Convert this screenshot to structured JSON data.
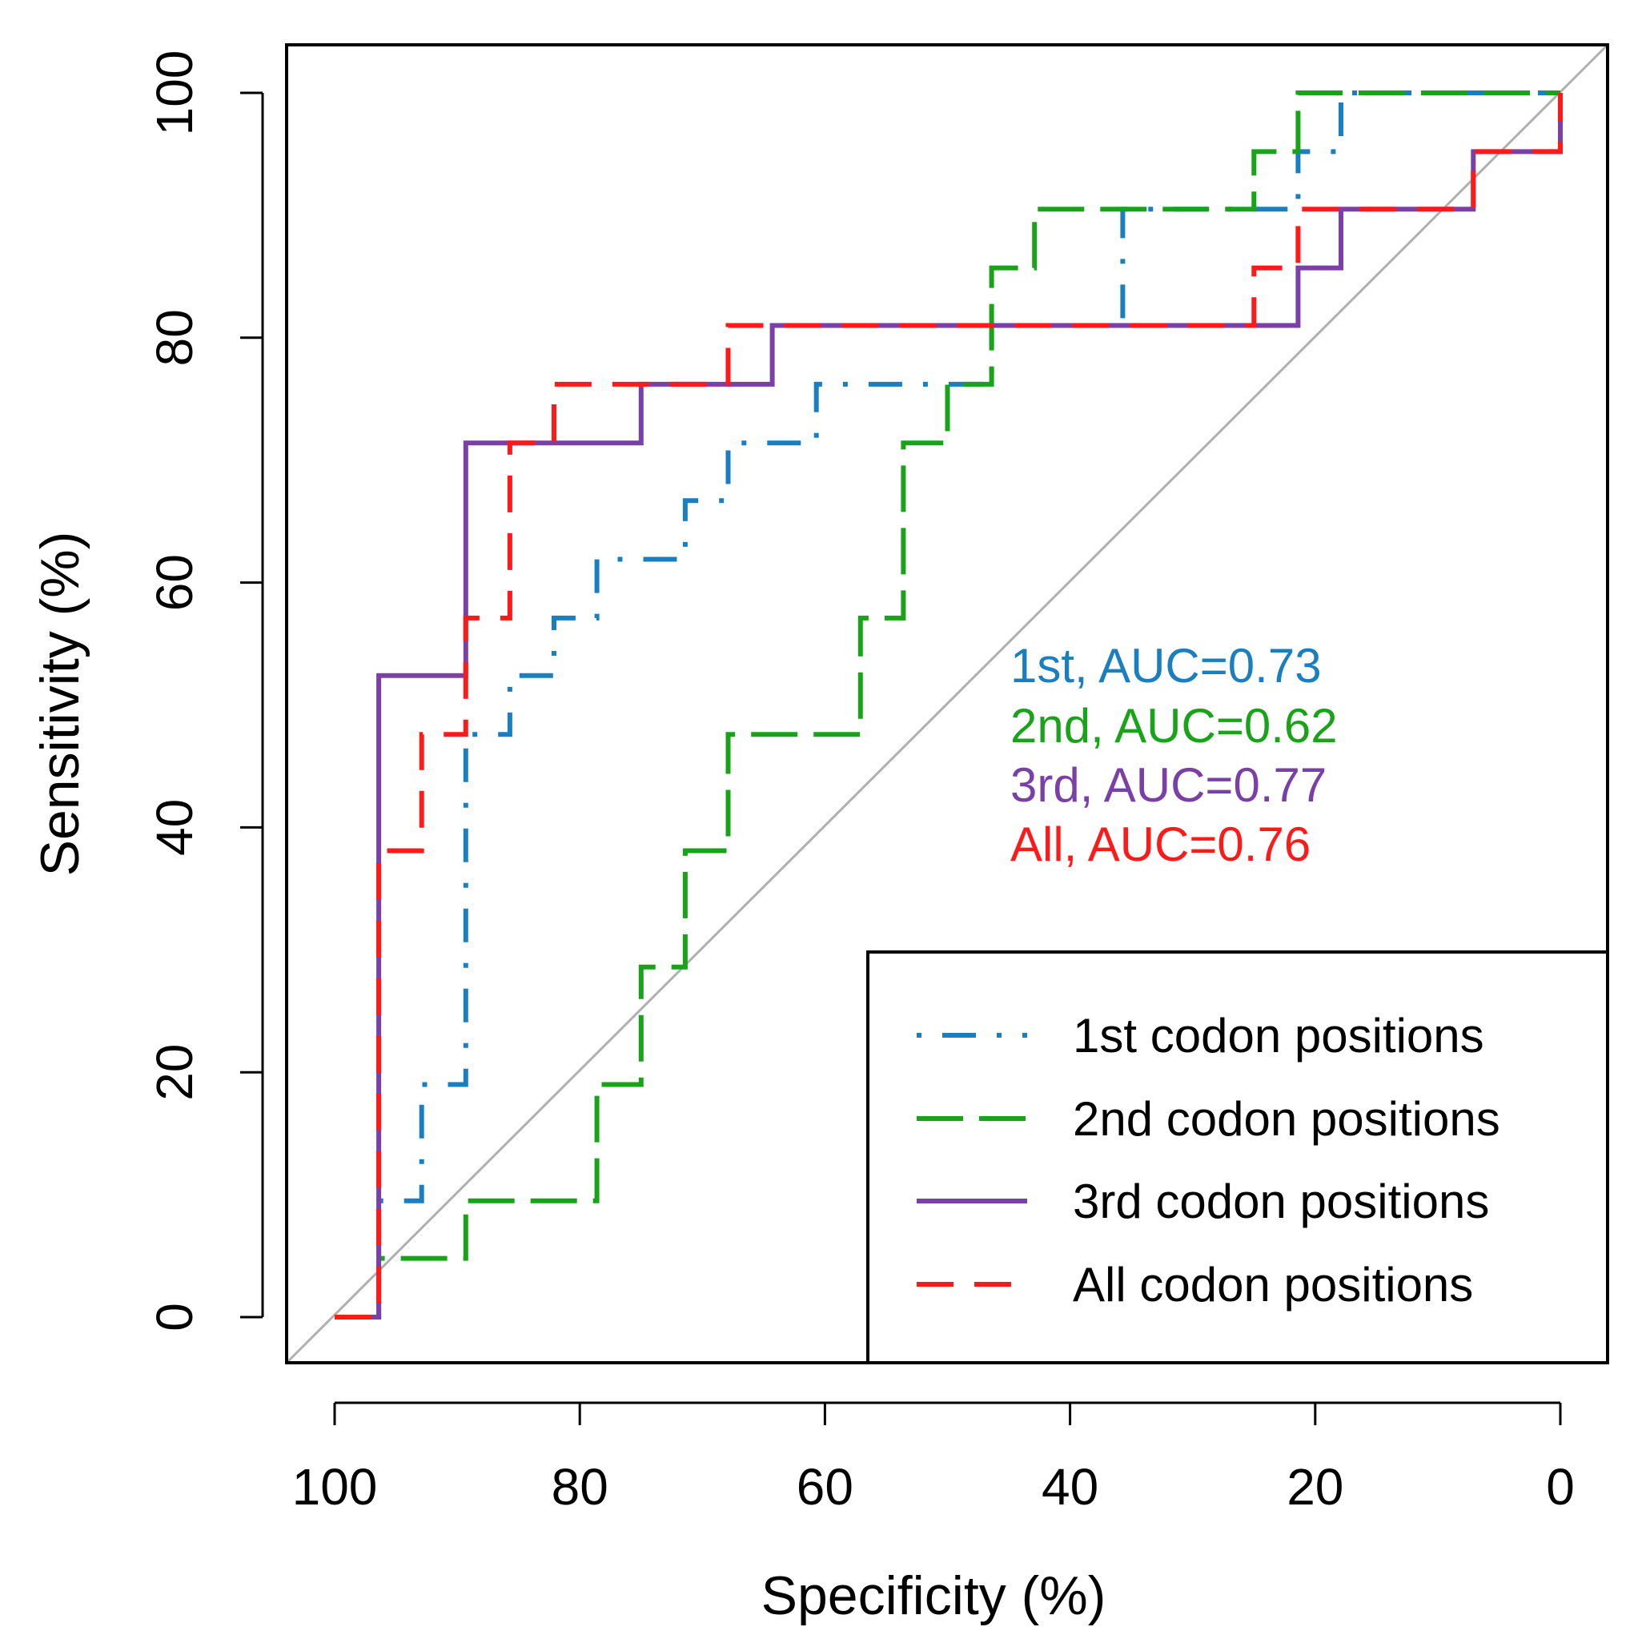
{
  "chart_data": {
    "type": "line",
    "title": "",
    "xlabel": "Specificity (%)",
    "ylabel": "Sensitivity (%)",
    "xlim": [
      100,
      0
    ],
    "ylim": [
      0,
      100
    ],
    "x_ticks": [
      "100",
      "80",
      "60",
      "40",
      "20",
      "0"
    ],
    "y_ticks": [
      "0",
      "20",
      "40",
      "60",
      "80",
      "100"
    ],
    "grid": false,
    "reference_line": {
      "name": "chance diagonal",
      "color": "#b0b0b0"
    },
    "legend_position": "bottom-right",
    "series": [
      {
        "name": "1st codon positions",
        "short": "1st",
        "auc_text": "1st, AUC=0.73",
        "color": "#1a7fc0",
        "dash": "dotdash",
        "points": [
          [
            100,
            0
          ],
          [
            96.4,
            0
          ],
          [
            96.4,
            9.5
          ],
          [
            92.9,
            9.5
          ],
          [
            92.9,
            19
          ],
          [
            89.3,
            19
          ],
          [
            89.3,
            47.6
          ],
          [
            85.7,
            47.6
          ],
          [
            85.7,
            52.4
          ],
          [
            82.1,
            52.4
          ],
          [
            82.1,
            57.1
          ],
          [
            78.6,
            57.1
          ],
          [
            78.6,
            61.9
          ],
          [
            71.4,
            61.9
          ],
          [
            71.4,
            66.7
          ],
          [
            67.9,
            66.7
          ],
          [
            67.9,
            71.4
          ],
          [
            60.7,
            71.4
          ],
          [
            60.7,
            76.2
          ],
          [
            53.6,
            76.2
          ],
          [
            53.6,
            76.2
          ],
          [
            46.4,
            76.2
          ],
          [
            46.4,
            81
          ],
          [
            35.7,
            81
          ],
          [
            35.7,
            90.5
          ],
          [
            21.4,
            90.5
          ],
          [
            21.4,
            95.2
          ],
          [
            17.9,
            95.2
          ],
          [
            17.9,
            100
          ],
          [
            0,
            100
          ]
        ]
      },
      {
        "name": "2nd codon positions",
        "short": "2nd",
        "auc_text": "2nd, AUC=0.62",
        "color": "#19a319",
        "dash": "longdash",
        "points": [
          [
            100,
            0
          ],
          [
            96.4,
            0
          ],
          [
            96.4,
            4.8
          ],
          [
            89.3,
            4.8
          ],
          [
            89.3,
            9.5
          ],
          [
            78.6,
            9.5
          ],
          [
            78.6,
            19
          ],
          [
            75,
            19
          ],
          [
            75,
            28.6
          ],
          [
            71.4,
            28.6
          ],
          [
            71.4,
            38.1
          ],
          [
            67.9,
            38.1
          ],
          [
            67.9,
            47.6
          ],
          [
            57.1,
            47.6
          ],
          [
            57.1,
            57.1
          ],
          [
            53.6,
            57.1
          ],
          [
            53.6,
            71.4
          ],
          [
            50,
            71.4
          ],
          [
            50,
            76.2
          ],
          [
            46.4,
            76.2
          ],
          [
            46.4,
            85.7
          ],
          [
            42.9,
            85.7
          ],
          [
            42.9,
            90.5
          ],
          [
            25,
            90.5
          ],
          [
            25,
            95.2
          ],
          [
            21.4,
            95.2
          ],
          [
            21.4,
            100
          ],
          [
            0,
            100
          ]
        ]
      },
      {
        "name": "3rd codon positions",
        "short": "3rd",
        "auc_text": "3rd, AUC=0.77",
        "color": "#7b3fa8",
        "dash": "solid",
        "points": [
          [
            100,
            0
          ],
          [
            96.4,
            0
          ],
          [
            96.4,
            52.4
          ],
          [
            89.3,
            52.4
          ],
          [
            89.3,
            71.4
          ],
          [
            75,
            71.4
          ],
          [
            75,
            76.2
          ],
          [
            64.3,
            76.2
          ],
          [
            64.3,
            81
          ],
          [
            21.4,
            81
          ],
          [
            21.4,
            85.7
          ],
          [
            17.9,
            85.7
          ],
          [
            17.9,
            90.5
          ],
          [
            7.1,
            90.5
          ],
          [
            7.1,
            95.2
          ],
          [
            0,
            95.2
          ],
          [
            0,
            100
          ]
        ]
      },
      {
        "name": "All codon positions",
        "short": "All",
        "auc_text": "All, AUC=0.76",
        "color": "#ff1a1a",
        "dash": "dashed",
        "points": [
          [
            100,
            0
          ],
          [
            96.4,
            0
          ],
          [
            96.4,
            38.1
          ],
          [
            92.9,
            38.1
          ],
          [
            92.9,
            47.6
          ],
          [
            89.3,
            47.6
          ],
          [
            89.3,
            57.1
          ],
          [
            85.7,
            57.1
          ],
          [
            85.7,
            71.4
          ],
          [
            82.1,
            71.4
          ],
          [
            82.1,
            76.2
          ],
          [
            67.9,
            76.2
          ],
          [
            67.9,
            81
          ],
          [
            25,
            81
          ],
          [
            25,
            85.7
          ],
          [
            21.4,
            85.7
          ],
          [
            21.4,
            90.5
          ],
          [
            7.1,
            90.5
          ],
          [
            7.1,
            95.2
          ],
          [
            0,
            95.2
          ],
          [
            0,
            100
          ]
        ]
      }
    ]
  }
}
